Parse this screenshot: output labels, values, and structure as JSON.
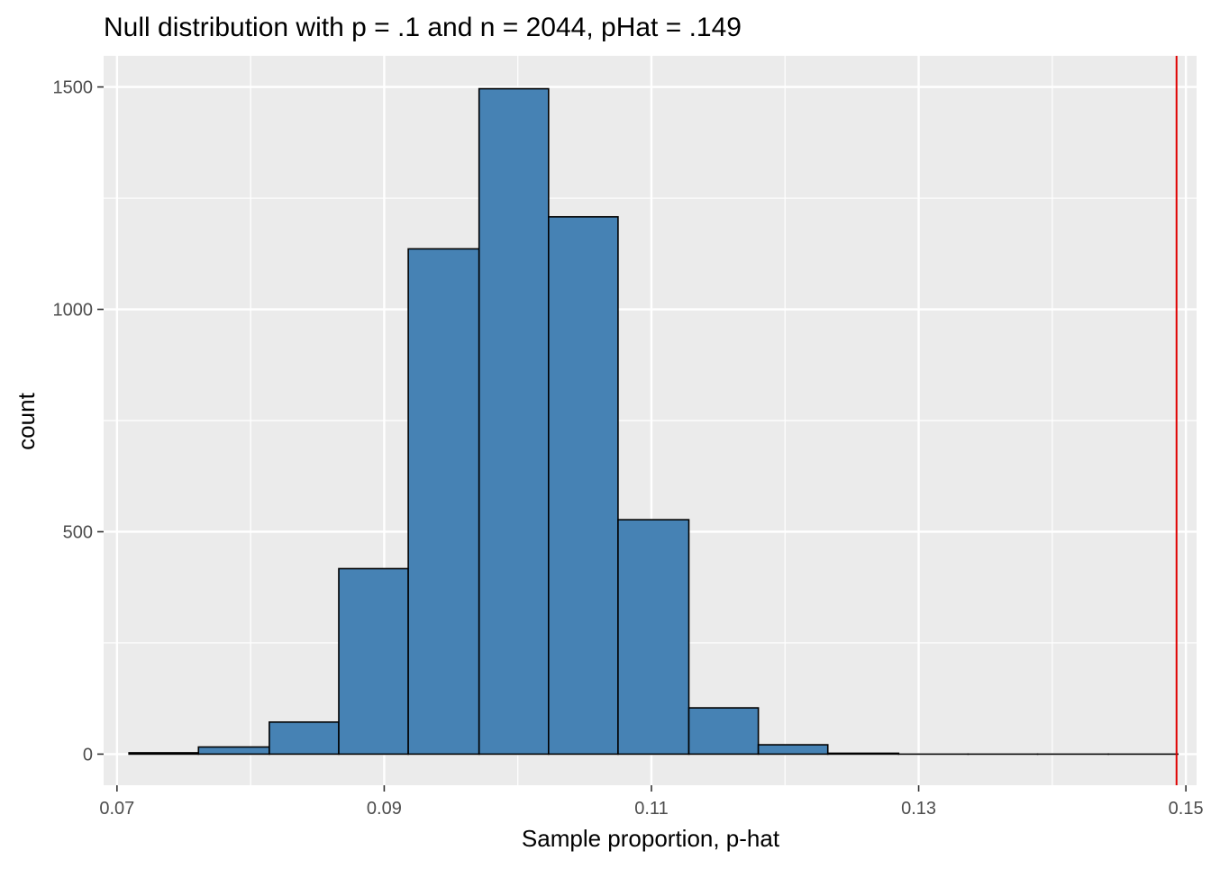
{
  "chart_data": {
    "type": "bar",
    "subtype": "histogram",
    "title": "Null distribution with p = .1 and n = 2044, pHat = .149",
    "xlabel": "Sample proportion, p-hat",
    "ylabel": "count",
    "xlim": [
      0.069,
      0.1508
    ],
    "ylim": [
      -70,
      1570
    ],
    "x_ticks": [
      0.07,
      0.09,
      0.11,
      0.13,
      0.15
    ],
    "x_tick_labels": [
      "0.07",
      "0.09",
      "0.11",
      "0.13",
      "0.15"
    ],
    "y_ticks": [
      0,
      500,
      1000,
      1500
    ],
    "y_tick_labels": [
      "0",
      "500",
      "1000",
      "1500"
    ],
    "bins": [
      {
        "x0": 0.0709,
        "x1": 0.0761,
        "count": 3
      },
      {
        "x0": 0.0761,
        "x1": 0.0814,
        "count": 16
      },
      {
        "x0": 0.0814,
        "x1": 0.0866,
        "count": 72
      },
      {
        "x0": 0.0866,
        "x1": 0.0918,
        "count": 417
      },
      {
        "x0": 0.0918,
        "x1": 0.0971,
        "count": 1136
      },
      {
        "x0": 0.0971,
        "x1": 0.1023,
        "count": 1496
      },
      {
        "x0": 0.1023,
        "x1": 0.1075,
        "count": 1208
      },
      {
        "x0": 0.1075,
        "x1": 0.1128,
        "count": 527
      },
      {
        "x0": 0.1128,
        "x1": 0.118,
        "count": 104
      },
      {
        "x0": 0.118,
        "x1": 0.1232,
        "count": 21
      },
      {
        "x0": 0.1232,
        "x1": 0.1285,
        "count": 2
      },
      {
        "x0": 0.1285,
        "x1": 0.1337,
        "count": 0
      },
      {
        "x0": 0.1337,
        "x1": 0.1389,
        "count": 0
      },
      {
        "x0": 0.1389,
        "x1": 0.1442,
        "count": 0
      },
      {
        "x0": 0.1442,
        "x1": 0.1494,
        "count": 0
      }
    ],
    "reference_line": {
      "x": 0.1493
    },
    "grid": true,
    "colors": {
      "panel_background": "#ebebeb",
      "grid_line": "#ffffff",
      "bar_fill": "#4682b4",
      "bar_outline": "#000000",
      "reference_line": "#e00000",
      "tick_text": "#4d4d4d",
      "axis_text": "#000000"
    }
  }
}
